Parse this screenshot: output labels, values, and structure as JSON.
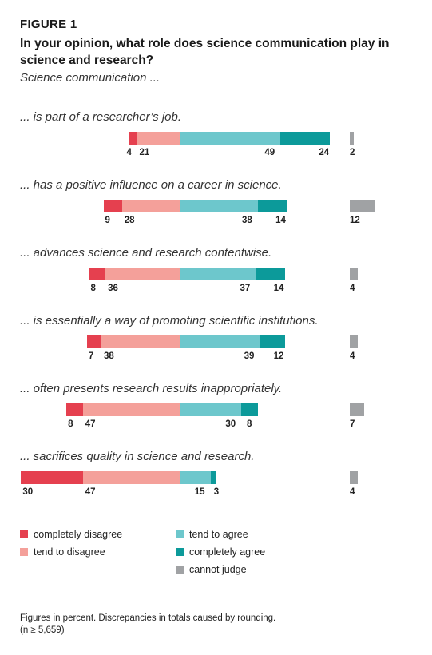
{
  "figure_label": "FIGURE 1",
  "title": "In your opinion, what role does science communication play in science and research?",
  "subtitle": "Science communication ...",
  "colors": {
    "completely_disagree": "#e5404f",
    "tend_to_disagree": "#f4a09a",
    "tend_to_agree": "#6dc7cc",
    "completely_agree": "#0c9a9a",
    "cannot_judge": "#a0a2a4"
  },
  "chart_data": {
    "type": "bar",
    "subtype": "diverging-stacked",
    "series": [
      {
        "name": "completely disagree",
        "key": "completely_disagree"
      },
      {
        "name": "tend to disagree",
        "key": "tend_to_disagree"
      },
      {
        "name": "tend to agree",
        "key": "tend_to_agree"
      },
      {
        "name": "completely agree",
        "key": "completely_agree"
      },
      {
        "name": "cannot judge",
        "key": "cannot_judge"
      }
    ],
    "categories": [
      {
        "label": "... is part of a researcher’s job.",
        "completely_disagree": 4,
        "tend_to_disagree": 21,
        "tend_to_agree": 49,
        "completely_agree": 24,
        "cannot_judge": 2
      },
      {
        "label": "... has a positive influence on a career in science.",
        "completely_disagree": 9,
        "tend_to_disagree": 28,
        "tend_to_agree": 38,
        "completely_agree": 14,
        "cannot_judge": 12
      },
      {
        "label": "... advances science and research contentwise.",
        "completely_disagree": 8,
        "tend_to_disagree": 36,
        "tend_to_agree": 37,
        "completely_agree": 14,
        "cannot_judge": 4
      },
      {
        "label": "... is essentially a way of promoting scientific institutions.",
        "completely_disagree": 7,
        "tend_to_disagree": 38,
        "tend_to_agree": 39,
        "completely_agree": 12,
        "cannot_judge": 4
      },
      {
        "label": "... often presents research results inappropriately.",
        "completely_disagree": 8,
        "tend_to_disagree": 47,
        "tend_to_agree": 30,
        "completely_agree": 8,
        "cannot_judge": 7
      },
      {
        "label": "... sacrifices quality in science and research.",
        "completely_disagree": 30,
        "tend_to_disagree": 47,
        "tend_to_agree": 15,
        "completely_agree": 3,
        "cannot_judge": 4
      }
    ]
  },
  "legend": [
    {
      "label": "completely disagree",
      "key": "completely_disagree"
    },
    {
      "label": "tend to disagree",
      "key": "tend_to_disagree"
    },
    {
      "label": "tend to agree",
      "key": "tend_to_agree"
    },
    {
      "label": "completely agree",
      "key": "completely_agree"
    },
    {
      "label": "cannot judge",
      "key": "cannot_judge"
    }
  ],
  "footnote": {
    "line1": "Figures in percent. Discrepancies in totals caused by rounding.",
    "line2": "(n ≥ 5,659)"
  }
}
